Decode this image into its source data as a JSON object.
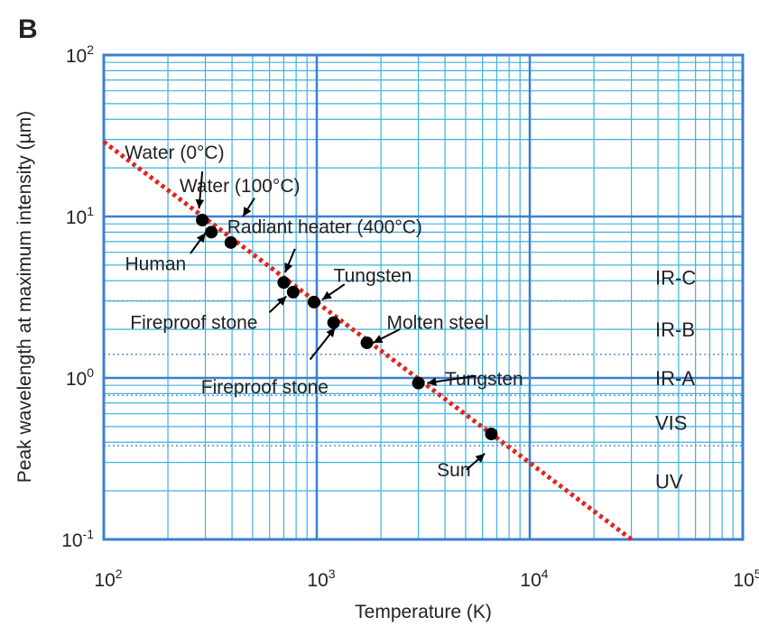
{
  "panel_label": "B",
  "colors": {
    "grid": "#3db2dd",
    "fit_line": "#e0251b",
    "points": "#000000",
    "band_divider": "#6a9ad0"
  },
  "chart_data": {
    "type": "scatter",
    "title": "",
    "xlabel": "Temperature (K)",
    "ylabel": "Peak wavelength at maximum intensity (µm)",
    "xscale": "log",
    "yscale": "log",
    "xlim": [
      100,
      100000
    ],
    "ylim": [
      0.1,
      100
    ],
    "grid": true,
    "x_ticks": [
      {
        "value": 100,
        "base": "10",
        "exp": "2"
      },
      {
        "value": 1000,
        "base": "10",
        "exp": "3"
      },
      {
        "value": 10000,
        "base": "10",
        "exp": "4"
      },
      {
        "value": 100000,
        "base": "10",
        "exp": "5"
      }
    ],
    "y_ticks": [
      {
        "value": 0.1,
        "base": "10",
        "exp": "-1"
      },
      {
        "value": 1,
        "base": "10",
        "exp": "0"
      },
      {
        "value": 10,
        "base": "10",
        "exp": "1"
      },
      {
        "value": 100,
        "base": "10",
        "exp": "2"
      }
    ],
    "fit_line": {
      "style": "dotted",
      "x": [
        100,
        30000
      ],
      "y": [
        29,
        0.1
      ]
    },
    "points": [
      {
        "x": 290,
        "y": 9.5
      },
      {
        "x": 320,
        "y": 8.0
      },
      {
        "x": 395,
        "y": 6.9
      },
      {
        "x": 700,
        "y": 3.9
      },
      {
        "x": 775,
        "y": 3.4
      },
      {
        "x": 970,
        "y": 2.95
      },
      {
        "x": 1200,
        "y": 2.2
      },
      {
        "x": 1720,
        "y": 1.65
      },
      {
        "x": 3000,
        "y": 0.93
      },
      {
        "x": 6600,
        "y": 0.45
      }
    ],
    "annotations": [
      {
        "text": "Water (0°C)",
        "text_x": 215,
        "text_y": 25,
        "arrow_from": [
          290,
          19
        ],
        "arrow_to": [
          280,
          11.2
        ]
      },
      {
        "text": "Water (100°C)",
        "text_x": 435,
        "text_y": 15.5,
        "arrow_from": [
          510,
          13
        ],
        "arrow_to": [
          450,
          10
        ]
      },
      {
        "text": "Radiant heater (400°C)",
        "text_x": 1090,
        "text_y": 8.6,
        "arrow_from": [
          790,
          6.3
        ],
        "arrow_to": [
          710,
          4.5
        ]
      },
      {
        "text": "Tungsten",
        "text_x": 1830,
        "text_y": 4.3,
        "arrow_from": [
          1350,
          3.8
        ],
        "arrow_to": [
          1060,
          3.05
        ]
      },
      {
        "text": "Human",
        "text_x": 175,
        "text_y": 5.1,
        "arrow_from": [
          255,
          5.9
        ],
        "arrow_to": [
          300,
          7.9
        ]
      },
      {
        "text": "Fireproof stone",
        "text_x": 265,
        "text_y": 2.2,
        "arrow_from": [
          600,
          2.55
        ],
        "arrow_to": [
          720,
          3.2
        ]
      },
      {
        "text": "Molten steel",
        "text_x": 3700,
        "text_y": 2.2,
        "arrow_from": [
          2450,
          2.0
        ],
        "arrow_to": [
          1840,
          1.65
        ]
      },
      {
        "text": "Fireproof stone",
        "text_x": 570,
        "text_y": 0.88,
        "arrow_from": [
          930,
          1.3
        ],
        "arrow_to": [
          1220,
          2.05
        ]
      },
      {
        "text": "Tungsten",
        "text_x": 6100,
        "text_y": 0.99,
        "arrow_from": [
          5600,
          1.03
        ],
        "arrow_to": [
          3300,
          0.93
        ]
      },
      {
        "text": "Sun",
        "text_x": 4400,
        "text_y": 0.27,
        "arrow_from": [
          5050,
          0.27
        ],
        "arrow_to": [
          6150,
          0.34
        ]
      }
    ],
    "spectral_bands": [
      {
        "label": "IR-C",
        "label_y": 4.2
      },
      {
        "label": "IR-B",
        "label_y": 2.0
      },
      {
        "label": "IR-A",
        "label_y": 1.0
      },
      {
        "label": "VIS",
        "label_y": 0.53
      },
      {
        "label": "UV",
        "label_y": 0.23
      }
    ],
    "band_boundaries": [
      3.0,
      1.4,
      0.78,
      0.38
    ]
  }
}
